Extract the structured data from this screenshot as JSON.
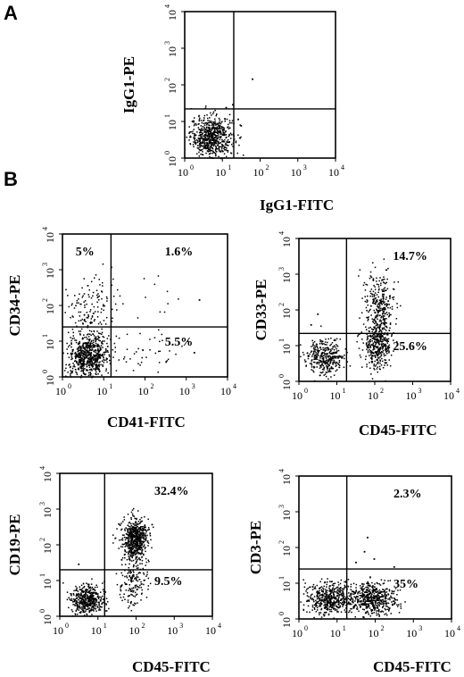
{
  "panel_labels": {
    "a": "A",
    "b": "B"
  },
  "chart_data": [
    {
      "type": "scatter",
      "panel": "A",
      "xlabel": "IgG1-FITC",
      "ylabel": "IgG1-PE",
      "scale": "log",
      "xlim": [
        1,
        10000
      ],
      "ylim": [
        1,
        10000
      ],
      "tick_labels": [
        "10",
        "10",
        "10",
        "10",
        "10"
      ],
      "tick_exponents": [
        "0",
        "1",
        "2",
        "3",
        "4"
      ],
      "gates": {
        "x": 20,
        "y": 22
      },
      "quadrant_labels": [],
      "populations": [
        {
          "center": [
            5,
            4
          ],
          "spread": [
            0.28,
            0.28
          ],
          "count": 650
        }
      ],
      "outliers": [
        [
          60,
          150
        ],
        [
          18,
          30
        ],
        [
          25,
          12
        ],
        [
          12,
          25
        ],
        [
          30,
          8
        ]
      ]
    },
    {
      "type": "scatter",
      "panel": "B",
      "xlabel": "CD41-FITC",
      "ylabel": "CD34-PE",
      "scale": "log",
      "xlim": [
        1,
        10000
      ],
      "ylim": [
        1,
        10000
      ],
      "tick_labels": [
        "10",
        "10",
        "10",
        "10",
        "10"
      ],
      "tick_exponents": [
        "0",
        "1",
        "2",
        "3",
        "4"
      ],
      "gates": {
        "x": 15,
        "y": 25
      },
      "quadrant_labels": [
        {
          "quadrant": "upper-left",
          "text": "5%"
        },
        {
          "quadrant": "upper-right",
          "text": "1.6%"
        },
        {
          "quadrant": "lower-right",
          "text": "5.5%"
        }
      ],
      "populations": [
        {
          "center": [
            4,
            4
          ],
          "spread": [
            0.25,
            0.3
          ],
          "count": 650
        },
        {
          "center": [
            5,
            90
          ],
          "spread": [
            0.3,
            0.45
          ],
          "count": 140
        },
        {
          "center": [
            100,
            6
          ],
          "spread": [
            0.45,
            0.3
          ],
          "count": 40
        },
        {
          "center": [
            150,
            120
          ],
          "spread": [
            0.45,
            0.35
          ],
          "count": 12
        }
      ],
      "outliers": [
        [
          2000,
          150
        ],
        [
          1500,
          5
        ]
      ]
    },
    {
      "type": "scatter",
      "panel": "B",
      "xlabel": "CD45-FITC",
      "ylabel": "CD33-PE",
      "scale": "log",
      "xlim": [
        1,
        10000
      ],
      "ylim": [
        1,
        10000
      ],
      "tick_labels": [
        "10",
        "10",
        "10",
        "10",
        "10"
      ],
      "tick_exponents": [
        "0",
        "1",
        "2",
        "3",
        "4"
      ],
      "gates": {
        "x": 18,
        "y": 22
      },
      "quadrant_labels": [
        {
          "quadrant": "upper-right",
          "text": "14.7%"
        },
        {
          "quadrant": "lower-right",
          "text": "25.6%"
        }
      ],
      "populations": [
        {
          "center": [
            5,
            5
          ],
          "spread": [
            0.25,
            0.25
          ],
          "count": 350
        },
        {
          "center": [
            110,
            12
          ],
          "spread": [
            0.18,
            0.35
          ],
          "count": 400
        },
        {
          "center": [
            130,
            150
          ],
          "spread": [
            0.2,
            0.45
          ],
          "count": 260
        }
      ],
      "outliers": [
        [
          2,
          40
        ],
        [
          3,
          80
        ]
      ]
    },
    {
      "type": "scatter",
      "panel": "B",
      "xlabel": "CD45-FITC",
      "ylabel": "CD19-PE",
      "scale": "log",
      "xlim": [
        1,
        10000
      ],
      "ylim": [
        1,
        10000
      ],
      "tick_labels": [
        "10",
        "10",
        "10",
        "10",
        "10"
      ],
      "tick_exponents": [
        "0",
        "1",
        "2",
        "3",
        "4"
      ],
      "gates": {
        "x": 15,
        "y": 20
      },
      "quadrant_labels": [
        {
          "quadrant": "upper-right",
          "text": "32.4%"
        },
        {
          "quadrant": "lower-right",
          "text": "9.5%"
        }
      ],
      "populations": [
        {
          "center": [
            5,
            3
          ],
          "spread": [
            0.22,
            0.22
          ],
          "count": 450
        },
        {
          "center": [
            90,
            150
          ],
          "spread": [
            0.18,
            0.3
          ],
          "count": 600
        },
        {
          "center": [
            80,
            8
          ],
          "spread": [
            0.2,
            0.3
          ],
          "count": 150
        }
      ],
      "outliers": [
        [
          3,
          30
        ],
        [
          40,
          40
        ]
      ]
    },
    {
      "type": "scatter",
      "panel": "B",
      "xlabel": "CD45-FITC",
      "ylabel": "CD3-PE",
      "scale": "log",
      "xlim": [
        1,
        10000
      ],
      "ylim": [
        1,
        10000
      ],
      "tick_labels": [
        "10",
        "10",
        "10",
        "10",
        "10"
      ],
      "tick_exponents": [
        "0",
        "1",
        "2",
        "3",
        "4"
      ],
      "gates": {
        "x": 18,
        "y": 25
      },
      "quadrant_labels": [
        {
          "quadrant": "upper-right",
          "text": "2.3%"
        },
        {
          "quadrant": "lower-right",
          "text": "35%"
        }
      ],
      "populations": [
        {
          "center": [
            6,
            4
          ],
          "spread": [
            0.3,
            0.22
          ],
          "count": 500
        },
        {
          "center": [
            80,
            4
          ],
          "spread": [
            0.32,
            0.22
          ],
          "count": 500
        }
      ],
      "outliers": [
        [
          60,
          200
        ],
        [
          50,
          80
        ],
        [
          90,
          50
        ],
        [
          30,
          40
        ],
        [
          300,
          30
        ]
      ]
    }
  ]
}
